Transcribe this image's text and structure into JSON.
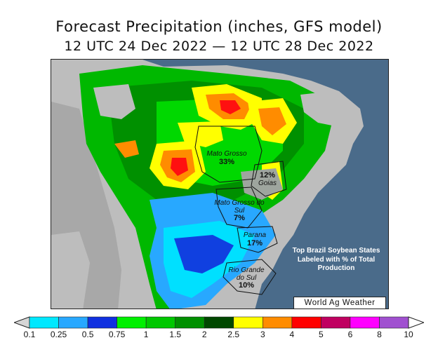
{
  "title": "Forecast Precipitation (inches, GFS model)",
  "subtitle": "12 UTC 24 Dec 2022 — 12 UTC 28 Dec 2022",
  "states": [
    {
      "name": "Mato Grosso",
      "pct": "33%"
    },
    {
      "name": "Goias",
      "pct": "12%"
    },
    {
      "name": "Mato Grosso do Sul",
      "pct": "7%"
    },
    {
      "name": "Parana",
      "pct": "17%"
    },
    {
      "name": "Rio Grande do Sul",
      "pct": "10%"
    }
  ],
  "note": "Top Brazil Soybean States Labeled with % of Total Production",
  "credit": "World Ag Weather",
  "legend": {
    "levels": [
      "0.1",
      "0.25",
      "0.5",
      "0.75",
      "1",
      "1.5",
      "2",
      "2.5",
      "3",
      "4",
      "5",
      "6",
      "8",
      "10"
    ],
    "colors": [
      "#d6d6d6",
      "#00e8ff",
      "#28a8ff",
      "#1030e0",
      "#00f000",
      "#00c800",
      "#009000",
      "#004800",
      "#ffff00",
      "#ff8c00",
      "#ff0000",
      "#c00060",
      "#ff00ff",
      "#a050d0"
    ]
  },
  "colors": {
    "ocean": "#4a6b8a",
    "land_dry": "#bdbdbd",
    "land_background": "#8e8e8e"
  }
}
